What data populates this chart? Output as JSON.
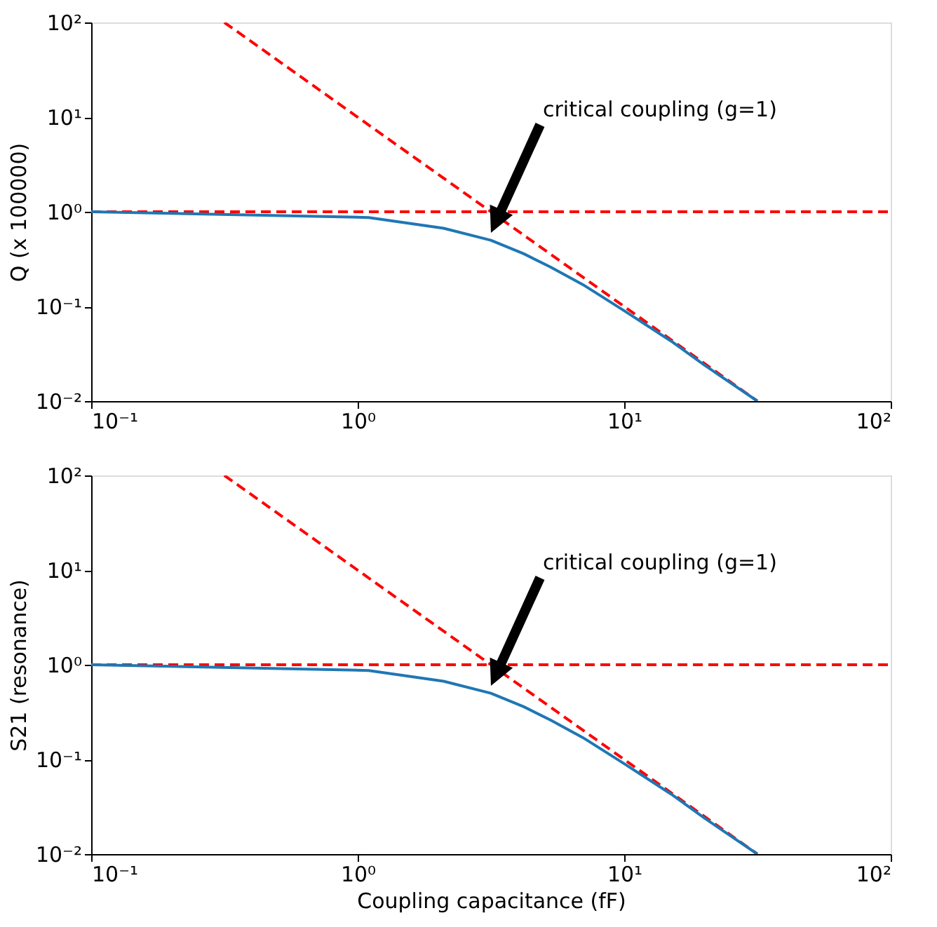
{
  "chart_data": [
    {
      "type": "line",
      "ylabel": "Q (x 100000)",
      "log": "xy",
      "grid": false,
      "marker": "none",
      "xlim": [
        0.1,
        100
      ],
      "ylim": [
        0.01,
        100
      ],
      "xticks": [
        {
          "value": 0.1,
          "label": "10⁻¹"
        },
        {
          "value": 1,
          "label": "10⁰"
        },
        {
          "value": 10,
          "label": "10¹"
        },
        {
          "value": 100,
          "label": "10²"
        }
      ],
      "yticks": [
        {
          "value": 0.01,
          "label": "10⁻²"
        },
        {
          "value": 0.1,
          "label": "10⁻¹"
        },
        {
          "value": 1,
          "label": "10⁰"
        },
        {
          "value": 10,
          "label": "10¹"
        },
        {
          "value": 100,
          "label": "10²"
        }
      ],
      "series": [
        {
          "color": "#ff0000",
          "line_style": "dashed",
          "x": [
            0.1,
            100
          ],
          "values": [
            1,
            1
          ]
        },
        {
          "color": "#ff0000",
          "line_style": "dashed",
          "x": [
            0.316,
            31.6
          ],
          "values": [
            100,
            0.01
          ]
        },
        {
          "color": "#1f77b4",
          "line_style": "solid",
          "x": [
            0.1,
            1.1,
            2.1,
            3.16,
            4.2,
            5.3,
            7,
            10,
            15,
            20,
            31.6
          ],
          "values": [
            1.0,
            0.87,
            0.67,
            0.5,
            0.36,
            0.26,
            0.17,
            0.09,
            0.043,
            0.024,
            0.01
          ]
        }
      ],
      "annotations": [
        "critical coupling (g=1)"
      ]
    },
    {
      "type": "line",
      "xlabel": "Coupling capacitance (fF)",
      "ylabel": "S21 (resonance)",
      "log": "xy",
      "grid": false,
      "marker": "none",
      "xlim": [
        0.1,
        100
      ],
      "ylim": [
        0.01,
        100
      ],
      "xticks": [
        {
          "value": 0.1,
          "label": "10⁻¹"
        },
        {
          "value": 1,
          "label": "10⁰"
        },
        {
          "value": 10,
          "label": "10¹"
        },
        {
          "value": 100,
          "label": "10²"
        }
      ],
      "yticks": [
        {
          "value": 0.01,
          "label": "10⁻²"
        },
        {
          "value": 0.1,
          "label": "10⁻¹"
        },
        {
          "value": 1,
          "label": "10⁰"
        },
        {
          "value": 10,
          "label": "10¹"
        },
        {
          "value": 100,
          "label": "10²"
        }
      ],
      "series": [
        {
          "color": "#ff0000",
          "line_style": "dashed",
          "x": [
            0.1,
            100
          ],
          "values": [
            1,
            1
          ]
        },
        {
          "color": "#ff0000",
          "line_style": "dashed",
          "x": [
            0.316,
            31.6
          ],
          "values": [
            100,
            0.01
          ]
        },
        {
          "color": "#1f77b4",
          "line_style": "solid",
          "x": [
            0.1,
            1.1,
            2.1,
            3.16,
            4.2,
            5.3,
            7,
            10,
            15,
            20,
            31.6
          ],
          "values": [
            1.0,
            0.87,
            0.67,
            0.5,
            0.36,
            0.26,
            0.17,
            0.09,
            0.043,
            0.024,
            0.01
          ]
        }
      ],
      "annotations": [
        "critical coupling (g=1)"
      ]
    }
  ]
}
